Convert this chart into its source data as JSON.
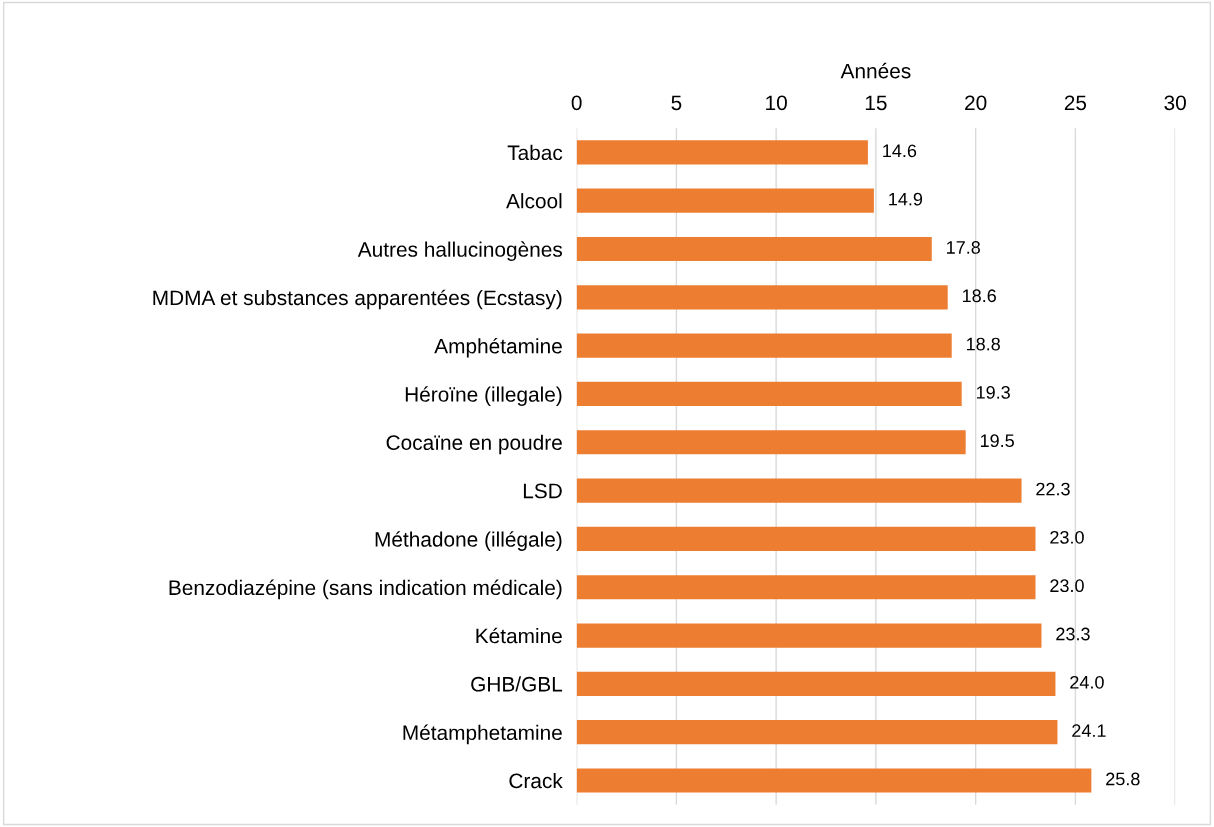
{
  "chart_data": {
    "type": "bar",
    "orientation": "horizontal",
    "xlabel": "Années",
    "categories": [
      "Tabac",
      "Alcool",
      "Autres hallucinogènes",
      "MDMA et substances apparentées (Ecstasy)",
      "Amphétamine",
      "Héroïne (illegale)",
      "Cocaïne en poudre",
      "LSD",
      "Méthadone (illégale)",
      "Benzodiazépine (sans indication médicale)",
      "Kétamine",
      "GHB/GBL",
      "Métamphetamine",
      "Crack"
    ],
    "values": [
      14.6,
      14.9,
      17.8,
      18.6,
      18.8,
      19.3,
      19.5,
      22.3,
      23.0,
      23.0,
      23.3,
      24.0,
      24.1,
      25.8
    ],
    "value_labels": [
      "14.6",
      "14.9",
      "17.8",
      "18.6",
      "18.8",
      "19.3",
      "19.5",
      "22.3",
      "23.0",
      "23.0",
      "23.3",
      "24.0",
      "24.1",
      "25.8"
    ],
    "color": "#ed7d31",
    "xlim": [
      0,
      30
    ],
    "xticks": [
      0,
      5,
      10,
      15,
      20,
      25,
      30
    ],
    "grid": "x",
    "legend": false
  }
}
